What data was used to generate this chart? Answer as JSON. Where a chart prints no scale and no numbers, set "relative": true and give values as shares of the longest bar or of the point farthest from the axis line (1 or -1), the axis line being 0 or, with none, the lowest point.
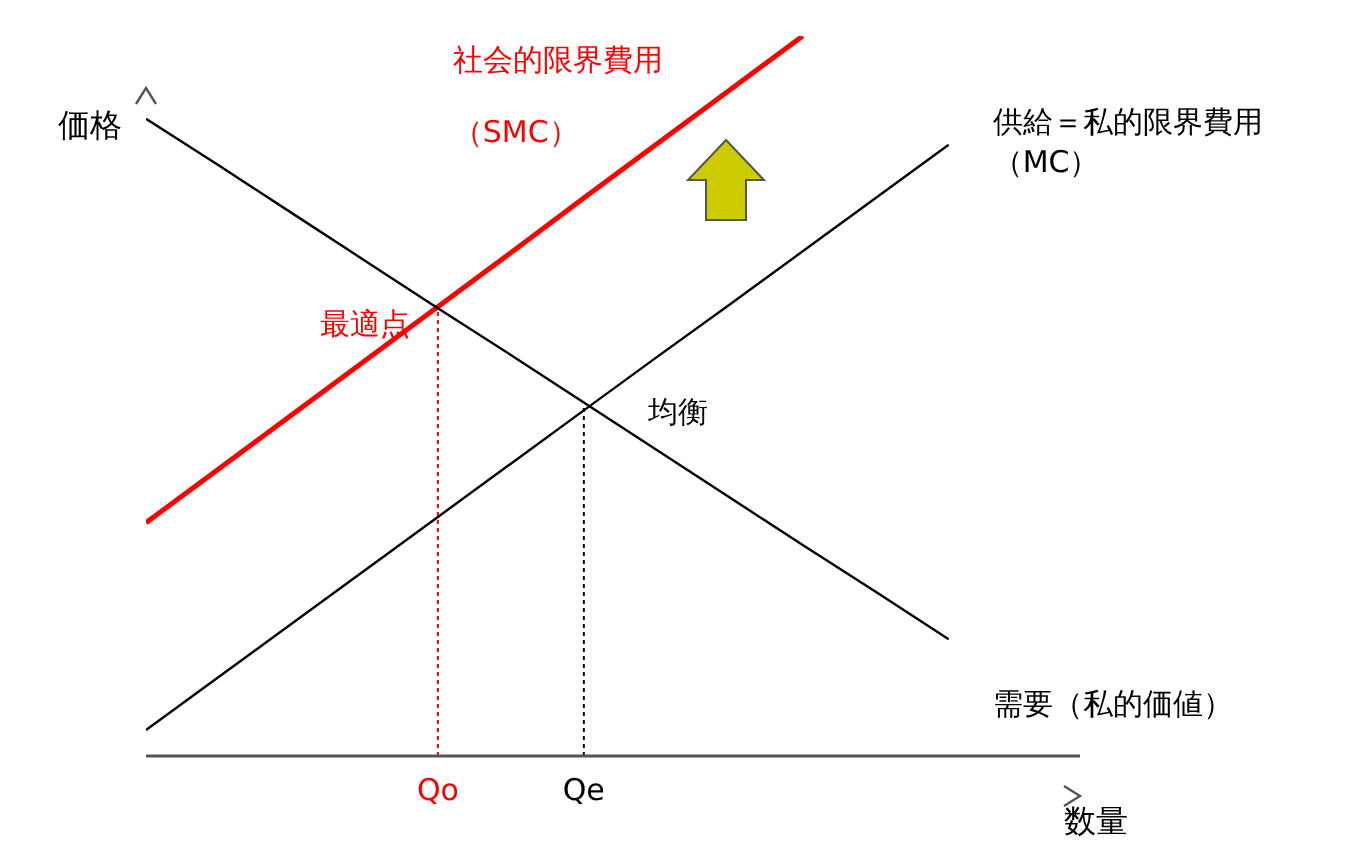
{
  "chart_data": {
    "type": "line",
    "relative": true,
    "xlabel": "数量",
    "ylabel": "価格",
    "categories": [
      null,
      null,
      null,
      null,
      "Qo",
      null,
      "Qe",
      null,
      null,
      null,
      null,
      null,
      null
    ],
    "series": [
      {
        "name": "社会的限界費用（SMC）",
        "color": "#ff0000",
        "values": [
          0.324,
          0.399,
          0.474,
          0.549,
          0.624,
          0.699,
          0.775,
          0.85,
          0.925,
          1,
          null,
          null,
          null
        ]
      },
      {
        "name": "供給＝私的限界費用（MC）",
        "color": "#000000",
        "values": [
          0.036,
          0.11,
          0.184,
          0.258,
          0.332,
          0.406,
          0.48,
          0.554,
          0.627,
          0.701,
          0.775,
          0.849,
          null
        ]
      },
      {
        "name": "需要（私的価値）",
        "color": "#000000",
        "values": [
          0.885,
          0.82,
          0.754,
          0.688,
          0.622,
          0.557,
          0.491,
          0.425,
          0.359,
          0.293,
          0.228,
          0.162,
          null
        ]
      }
    ],
    "ref_lines": [
      {
        "axis": "x",
        "value": "Qo",
        "color": "#ff0000",
        "line_style": "dotted"
      },
      {
        "axis": "x",
        "value": "Qe",
        "color": "#000000",
        "line_style": "dotted"
      }
    ],
    "annotations": [
      {
        "text": "最適点",
        "x": "Qo",
        "y": 0.624
      },
      {
        "text": "均衡",
        "x": "Qe",
        "y": 0.487
      }
    ],
    "grid": false,
    "legend": false,
    "marker": "none",
    "line_style": "solid"
  }
}
